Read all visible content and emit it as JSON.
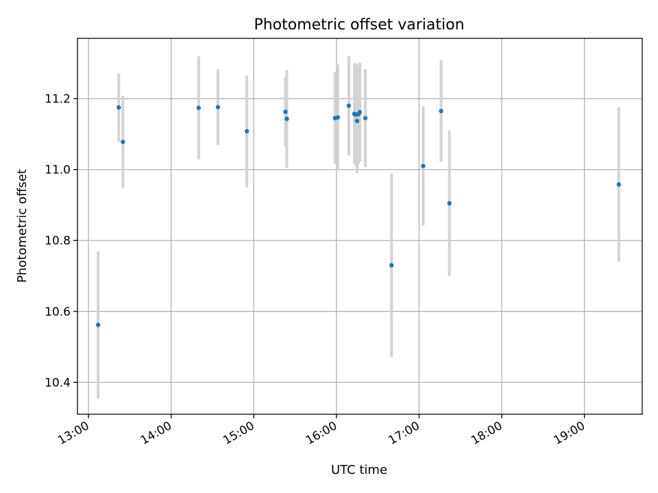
{
  "chart_data": {
    "type": "scatter",
    "title": "Photometric offset variation",
    "xlabel": "UTC time",
    "ylabel": "Photometric offset",
    "x_format": "HH:MM",
    "xlim": [
      "12:52",
      "19:42"
    ],
    "ylim": [
      10.31,
      11.37
    ],
    "xticks": [
      "13:00",
      "14:00",
      "15:00",
      "16:00",
      "17:00",
      "18:00",
      "19:00"
    ],
    "yticks": [
      10.4,
      10.6,
      10.8,
      11.0,
      11.2
    ],
    "ytick_labels": [
      "10.4",
      "10.6",
      "10.8",
      "11.0",
      "11.2"
    ],
    "grid": true,
    "marker_color": "#1f77b4",
    "errorbar_color": "#d3d3d3",
    "points": [
      {
        "x": "13:07",
        "y": 10.562,
        "err": 0.208
      },
      {
        "x": "13:22",
        "y": 11.175,
        "err": 0.097
      },
      {
        "x": "13:25",
        "y": 11.078,
        "err": 0.13
      },
      {
        "x": "14:20",
        "y": 11.174,
        "err": 0.145
      },
      {
        "x": "14:34",
        "y": 11.176,
        "err": 0.107
      },
      {
        "x": "14:55",
        "y": 11.108,
        "err": 0.158
      },
      {
        "x": "15:23",
        "y": 11.163,
        "err": 0.097
      },
      {
        "x": "15:24",
        "y": 11.143,
        "err": 0.138
      },
      {
        "x": "15:59",
        "y": 11.145,
        "err": 0.13
      },
      {
        "x": "16:01",
        "y": 11.147,
        "err": 0.15
      },
      {
        "x": "16:09",
        "y": 11.18,
        "err": 0.14
      },
      {
        "x": "16:13",
        "y": 11.157,
        "err": 0.14
      },
      {
        "x": "16:14",
        "y": 11.155,
        "err": 0.145
      },
      {
        "x": "16:15",
        "y": 11.137,
        "err": 0.148
      },
      {
        "x": "16:16",
        "y": 11.156,
        "err": 0.14
      },
      {
        "x": "16:17",
        "y": 11.162,
        "err": 0.14
      },
      {
        "x": "16:21",
        "y": 11.145,
        "err": 0.138
      },
      {
        "x": "16:40",
        "y": 10.73,
        "err": 0.258
      },
      {
        "x": "17:03",
        "y": 11.01,
        "err": 0.168
      },
      {
        "x": "17:16",
        "y": 11.165,
        "err": 0.143
      },
      {
        "x": "17:22",
        "y": 10.905,
        "err": 0.205
      },
      {
        "x": "19:25",
        "y": 10.958,
        "err": 0.218
      }
    ]
  }
}
